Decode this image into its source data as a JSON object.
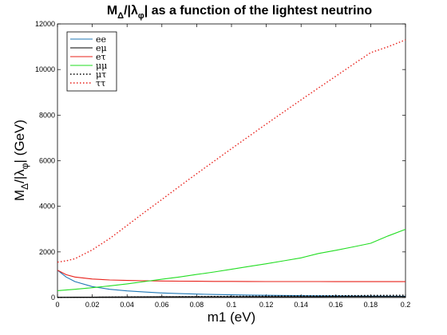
{
  "chart_data": {
    "type": "line",
    "title": "M_Δ/|λ_φ| as a function of the lightest neutrino",
    "title_parts": {
      "a": "M",
      "b": "Δ",
      "c": "/|λ",
      "d": "φ",
      "e": "| as a function of the lightest neutrino"
    },
    "xlabel": "m1 (eV)",
    "ylabel": "M_Δ/|λ_φ| (GeV)",
    "ylabel_parts": {
      "a": "M",
      "b": "Δ",
      "c": "/|λ",
      "d": "φ",
      "e": "| (GeV)"
    },
    "xlim": [
      0,
      0.2
    ],
    "ylim": [
      0,
      12000
    ],
    "x_ticks": [
      0,
      0.02,
      0.04,
      0.06,
      0.08,
      0.1,
      0.12,
      0.14,
      0.16,
      0.18,
      0.2
    ],
    "x_tick_labels": [
      "0",
      "0.02",
      "0.04",
      "0.06",
      "0.08",
      "0.1",
      "0.12",
      "0.14",
      "0.16",
      "0.18",
      "0.2"
    ],
    "y_ticks": [
      0,
      2000,
      4000,
      6000,
      8000,
      10000,
      12000
    ],
    "y_tick_labels": [
      "0",
      "2000",
      "4000",
      "6000",
      "8000",
      "10000",
      "12000"
    ],
    "grid": false,
    "legend_position": "top-left",
    "x": [
      0,
      0.005,
      0.01,
      0.02,
      0.03,
      0.04,
      0.05,
      0.06,
      0.07,
      0.08,
      0.09,
      0.1,
      0.11,
      0.12,
      0.13,
      0.14,
      0.15,
      0.16,
      0.17,
      0.18,
      0.19,
      0.2
    ],
    "series": [
      {
        "name": "ee",
        "color": "#1f77b4",
        "dash": "solid",
        "values": [
          1200,
          900,
          700,
          480,
          360,
          290,
          240,
          200,
          172,
          150,
          133,
          119,
          108,
          98,
          90,
          83,
          77,
          72,
          67,
          63,
          60,
          56
        ]
      },
      {
        "name": "eμ",
        "color": "#000000",
        "dash": "solid",
        "values": [
          10,
          12,
          14,
          18,
          22,
          25,
          28,
          30,
          32,
          34,
          35,
          36,
          37,
          38,
          39,
          40,
          40,
          41,
          41,
          42,
          42,
          42
        ]
      },
      {
        "name": "eτ",
        "color": "#e8201a",
        "dash": "solid",
        "values": [
          1200,
          1000,
          900,
          810,
          770,
          750,
          735,
          725,
          718,
          712,
          708,
          705,
          703,
          701,
          700,
          699,
          698,
          697,
          697,
          696,
          696,
          695
        ]
      },
      {
        "name": "μμ",
        "color": "#22dd22",
        "dash": "solid",
        "values": [
          300,
          330,
          360,
          430,
          510,
          600,
          700,
          800,
          900,
          1010,
          1120,
          1240,
          1360,
          1480,
          1610,
          1740,
          1930,
          2070,
          2220,
          2380,
          2700,
          2990
        ]
      },
      {
        "name": "μτ",
        "color": "#000000",
        "dash": "dotted",
        "values": [
          5,
          6,
          8,
          12,
          16,
          20,
          25,
          30,
          35,
          40,
          45,
          50,
          55,
          60,
          65,
          70,
          75,
          80,
          85,
          90,
          95,
          100
        ]
      },
      {
        "name": "ττ",
        "color": "#e8201a",
        "dash": "dotted",
        "values": [
          1550,
          1610,
          1700,
          2090,
          2590,
          3160,
          3740,
          4300,
          4870,
          5430,
          5980,
          6530,
          7070,
          7610,
          8140,
          8670,
          9190,
          9710,
          10230,
          10740,
          11000,
          11300
        ]
      }
    ]
  }
}
